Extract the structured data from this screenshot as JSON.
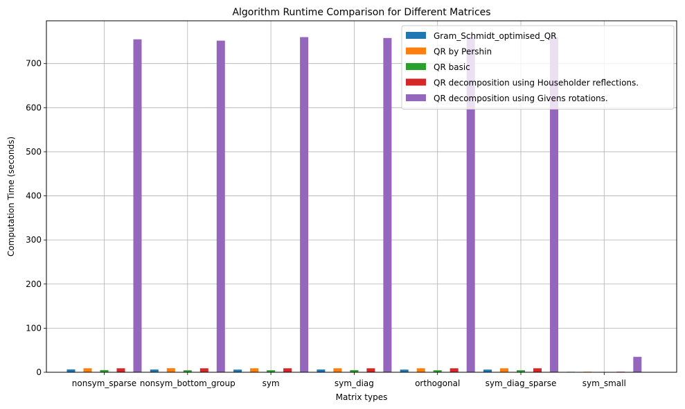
{
  "chart_data": {
    "type": "bar",
    "title": "Algorithm Runtime Comparison for Different Matrices",
    "xlabel": "Matrix types",
    "ylabel": "Computation Time (seconds)",
    "categories": [
      "nonsym_sparse",
      "nonsym_bottom_group",
      "sym",
      "sym_diag",
      "orthogonal",
      "sym_diag_sparse",
      "sym_small"
    ],
    "series": [
      {
        "name": "Gram_Schmidt_optimised_QR",
        "color": "#1f77b4",
        "values": [
          6.5,
          6.2,
          6.0,
          6.2,
          6.0,
          6.0,
          1.0
        ]
      },
      {
        "name": "QR by Pershin",
        "color": "#ff7f0e",
        "values": [
          9.0,
          9.2,
          9.0,
          9.0,
          9.0,
          9.0,
          1.2
        ]
      },
      {
        "name": "QR basic",
        "color": "#2ca02c",
        "values": [
          5.0,
          4.5,
          4.5,
          4.8,
          4.5,
          4.5,
          0.8
        ]
      },
      {
        "name": "QR decomposition using Householder reflections.",
        "color": "#d62728",
        "values": [
          9.0,
          9.0,
          9.0,
          9.0,
          9.0,
          9.0,
          1.2
        ]
      },
      {
        "name": "QR decomposition using Givens rotations.",
        "color": "#9467bd",
        "values": [
          755,
          752,
          760,
          758,
          760,
          760,
          35
        ]
      }
    ],
    "yticks": [
      "0",
      "100",
      "200",
      "300",
      "400",
      "500",
      "600",
      "700"
    ],
    "ylim": [
      0,
      797
    ],
    "grid": true,
    "legend_position": "top-right"
  }
}
